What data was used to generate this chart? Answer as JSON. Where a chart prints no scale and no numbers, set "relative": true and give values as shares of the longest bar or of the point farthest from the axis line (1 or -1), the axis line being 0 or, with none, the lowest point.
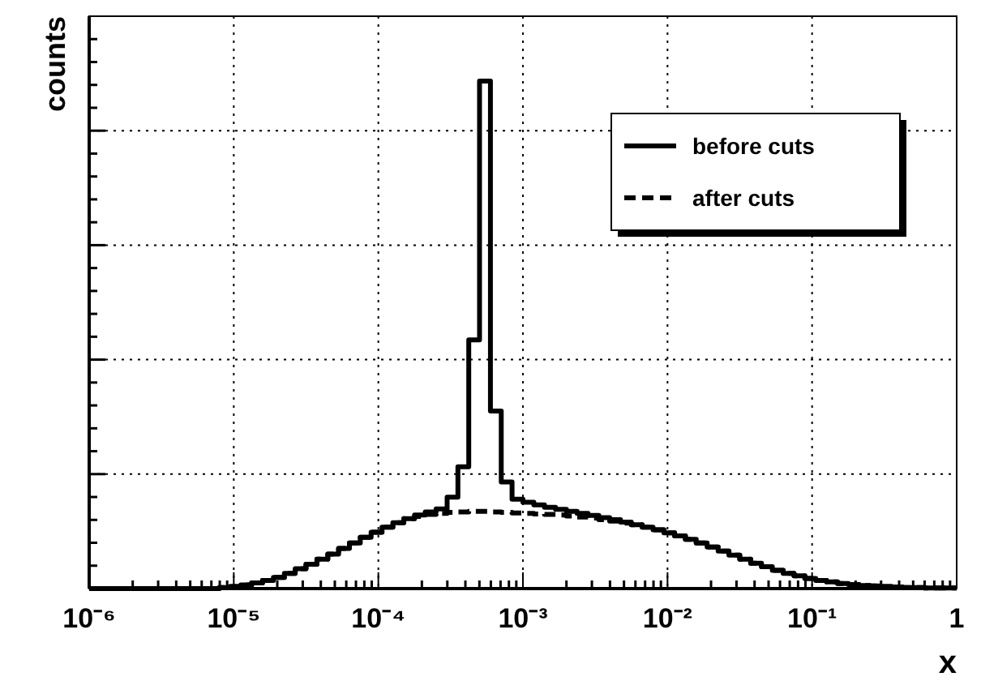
{
  "chart_data": {
    "type": "step",
    "xlabel": "x",
    "ylabel": "counts",
    "log": "x",
    "relative": true,
    "grid": true,
    "legend": "top right",
    "xlim": [
      1e-06,
      1
    ],
    "xticks": [
      {
        "value": 1e-06,
        "label": "10⁻⁶"
      },
      {
        "value": 1e-05,
        "label": "10⁻⁵"
      },
      {
        "value": 0.0001,
        "label": "10⁻⁴"
      },
      {
        "value": 0.001,
        "label": "10⁻³"
      },
      {
        "value": 0.01,
        "label": "10⁻²"
      },
      {
        "value": 0.1,
        "label": "10⁻¹"
      },
      {
        "value": 1,
        "label": "1"
      }
    ],
    "x": [
      1e-06,
      1.19e-06,
      1.41e-06,
      1.68e-06,
      2e-06,
      2.37e-06,
      2.82e-06,
      3.35e-06,
      3.98e-06,
      4.73e-06,
      5.62e-06,
      6.68e-06,
      7.94e-06,
      9.44e-06,
      1.12e-05,
      1.33e-05,
      1.58e-05,
      1.88e-05,
      2.24e-05,
      2.66e-05,
      3.16e-05,
      3.76e-05,
      4.47e-05,
      5.31e-05,
      6.31e-05,
      7.5e-05,
      8.91e-05,
      0.000106,
      0.000126,
      0.00015,
      0.000178,
      0.000211,
      0.000251,
      0.000299,
      0.000355,
      0.000422,
      0.000501,
      0.000596,
      0.000708,
      0.000841,
      0.001,
      0.00119,
      0.00141,
      0.00168,
      0.002,
      0.00237,
      0.00282,
      0.00335,
      0.00398,
      0.00473,
      0.00562,
      0.00668,
      0.00794,
      0.00944,
      0.0112,
      0.0133,
      0.0158,
      0.0188,
      0.0224,
      0.0266,
      0.0316,
      0.0376,
      0.0447,
      0.0531,
      0.0631,
      0.075,
      0.0891,
      0.106,
      0.126,
      0.15,
      0.178,
      0.211,
      0.251,
      0.299,
      0.355,
      0.422,
      0.501,
      0.596,
      0.708,
      0.841,
      1
    ],
    "series": [
      {
        "name": "before cuts",
        "color": "#000000",
        "line_style": "solid",
        "values": [
          0,
          0,
          0,
          0,
          0,
          0,
          0,
          0,
          0,
          0,
          0,
          0,
          0.002,
          0.004,
          0.007,
          0.011,
          0.016,
          0.022,
          0.03,
          0.039,
          0.048,
          0.058,
          0.068,
          0.079,
          0.09,
          0.101,
          0.111,
          0.121,
          0.13,
          0.138,
          0.145,
          0.151,
          0.157,
          0.18,
          0.24,
          0.49,
          1.0,
          0.35,
          0.21,
          0.176,
          0.17,
          0.165,
          0.16,
          0.156,
          0.152,
          0.148,
          0.144,
          0.14,
          0.136,
          0.131,
          0.126,
          0.121,
          0.116,
          0.11,
          0.104,
          0.097,
          0.09,
          0.082,
          0.074,
          0.066,
          0.058,
          0.05,
          0.043,
          0.036,
          0.03,
          0.025,
          0.02,
          0.016,
          0.013,
          0.01,
          0.008,
          0.006,
          0.005,
          0.004,
          0.003,
          0.002,
          0.002,
          0.001,
          0.001,
          0.001,
          0.001
        ]
      },
      {
        "name": "after cuts",
        "color": "#000000",
        "line_style": "dashed",
        "values": [
          0,
          0,
          0,
          0,
          0,
          0,
          0,
          0,
          0,
          0,
          0,
          0,
          0.002,
          0.004,
          0.007,
          0.011,
          0.016,
          0.022,
          0.03,
          0.039,
          0.048,
          0.058,
          0.068,
          0.079,
          0.09,
          0.101,
          0.111,
          0.121,
          0.13,
          0.138,
          0.142,
          0.146,
          0.148,
          0.15,
          0.151,
          0.152,
          0.152,
          0.151,
          0.15,
          0.149,
          0.148,
          0.147,
          0.146,
          0.145,
          0.143,
          0.141,
          0.139,
          0.136,
          0.133,
          0.129,
          0.126,
          0.121,
          0.116,
          0.11,
          0.104,
          0.097,
          0.09,
          0.082,
          0.074,
          0.066,
          0.058,
          0.05,
          0.043,
          0.036,
          0.03,
          0.025,
          0.02,
          0.016,
          0.013,
          0.01,
          0.008,
          0.006,
          0.005,
          0.004,
          0.003,
          0.002,
          0.002,
          0.001,
          0.001,
          0.001,
          0.001
        ]
      }
    ]
  }
}
